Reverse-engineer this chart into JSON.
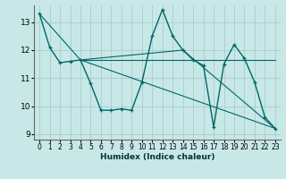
{
  "xlabel": "Humidex (Indice chaleur)",
  "background_color": "#c8e8e8",
  "grid_color": "#a8cccc",
  "line_color": "#006666",
  "xlim": [
    -0.5,
    23.5
  ],
  "ylim": [
    8.8,
    13.6
  ],
  "yticks": [
    9,
    10,
    11,
    12,
    13
  ],
  "xticks": [
    0,
    1,
    2,
    3,
    4,
    5,
    6,
    7,
    8,
    9,
    10,
    11,
    12,
    13,
    14,
    15,
    16,
    17,
    18,
    19,
    20,
    21,
    22,
    23
  ],
  "series": [
    [
      0,
      13.3
    ],
    [
      1,
      12.1
    ],
    [
      2,
      11.55
    ],
    [
      3,
      11.6
    ],
    [
      4,
      11.65
    ],
    [
      5,
      10.8
    ],
    [
      6,
      9.85
    ],
    [
      7,
      9.85
    ],
    [
      8,
      9.9
    ],
    [
      9,
      9.85
    ],
    [
      10,
      10.85
    ],
    [
      11,
      12.5
    ],
    [
      12,
      13.45
    ],
    [
      13,
      12.5
    ],
    [
      14,
      12.0
    ],
    [
      15,
      11.65
    ],
    [
      16,
      11.45
    ],
    [
      17,
      9.25
    ],
    [
      18,
      11.5
    ],
    [
      19,
      12.2
    ],
    [
      20,
      11.7
    ],
    [
      21,
      10.85
    ],
    [
      22,
      9.6
    ],
    [
      23,
      9.2
    ]
  ],
  "line2": [
    [
      0,
      13.3
    ],
    [
      4,
      11.65
    ],
    [
      23,
      9.2
    ]
  ],
  "line3": [
    [
      4,
      11.65
    ],
    [
      14,
      12.0
    ],
    [
      23,
      9.2
    ]
  ],
  "line4": [
    [
      4,
      11.65
    ],
    [
      23,
      11.65
    ]
  ]
}
